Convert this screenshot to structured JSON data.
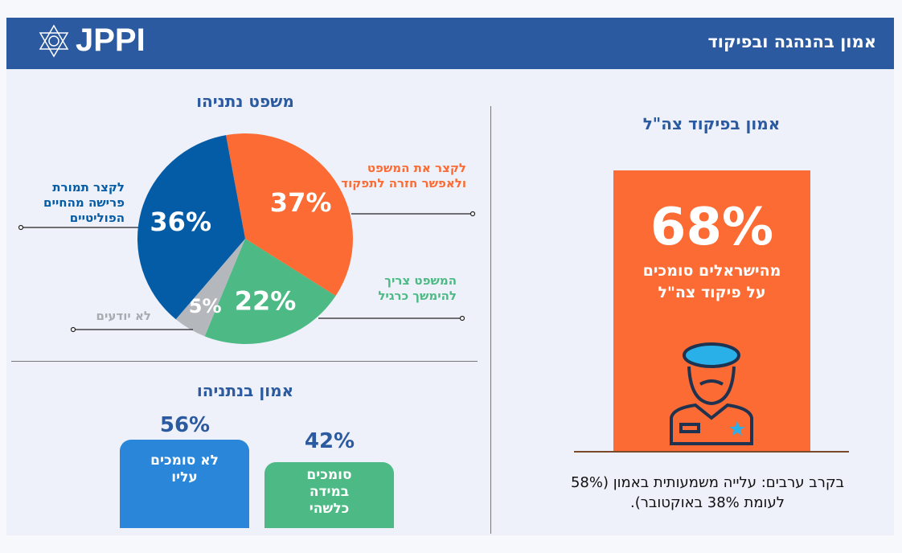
{
  "header": {
    "title": "אמון בהנהגה ובפיקוד",
    "logo": "JPPI"
  },
  "chart_data": [
    {
      "type": "pie",
      "title": "משפט נתניהו",
      "slices": [
        {
          "label": "לקצר את המשפט ולאפשר חזרה לתפקוד",
          "value": 37,
          "display": "37%",
          "color": "#fb6b33"
        },
        {
          "label": "המשפט צריך להימשך כרגיל",
          "value": 22,
          "display": "22%",
          "color": "#4dba85"
        },
        {
          "label": "לא יודעים",
          "value": 5,
          "display": "5%",
          "color": "#b4b8bc"
        },
        {
          "label": "לקצר תמורת פרישה מהחיים הפוליטיים",
          "value": 36,
          "display": "36%",
          "color": "#045ba6"
        }
      ]
    },
    {
      "type": "bar",
      "title": "אמון בנתניהו",
      "categories": [
        "לא סומכים עליו",
        "סומכים במידה כלשהי"
      ],
      "values": [
        56,
        42
      ],
      "display": [
        "56%",
        "42%"
      ],
      "colors": [
        "#2a86d9",
        "#4dba85"
      ]
    }
  ],
  "idf": {
    "title": "אמון בפיקוד צה\"ל",
    "big": "68%",
    "text": "מהישראלים סומכים על פיקוד צה\"ל",
    "value": 68,
    "note": "בקרב ערבים: עלייה משמעותית באמון (58% לעומת 38% באוקטובר).",
    "color": "#fb6b33"
  }
}
